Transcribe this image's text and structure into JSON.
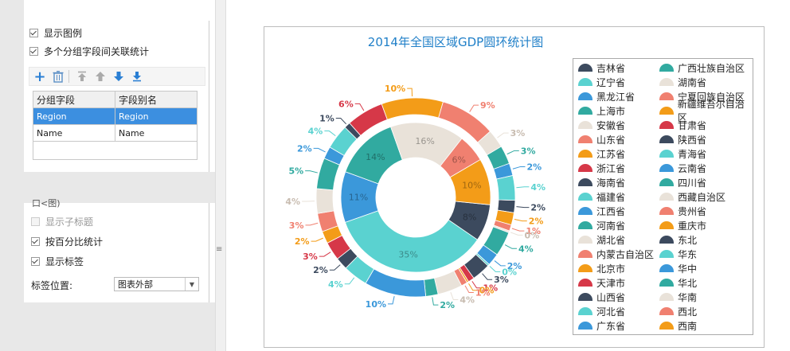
{
  "panel": {
    "show_legend": "显示图例",
    "multi_group": "多个分组字段间关联统计",
    "table_headers": [
      "分组字段",
      "字段别名"
    ],
    "rows": [
      [
        "Region",
        "Region"
      ],
      [
        "Name",
        "Name"
      ]
    ],
    "show_subtitle": "显示子标题",
    "by_percent": "按百分比统计",
    "show_label": "显示标签",
    "label_pos_label": "标签位置:",
    "label_pos_value": "图表外部",
    "partial_label": "口<图)"
  },
  "colors": {
    "accent": "#3c8fe0",
    "title": "#1f7fc8"
  },
  "chart_data": {
    "type": "pie",
    "title": "2014年全国区域GDP圆环统计图",
    "palette": [
      "#3c4a5e",
      "#5ad2d0",
      "#3b98da",
      "#31aaa0",
      "#e9e2d9",
      "#f08070",
      "#f39c18",
      "#d63848"
    ],
    "inner": {
      "categories": [
        "东北",
        "华东",
        "华中",
        "华北",
        "华南",
        "西北",
        "西南"
      ],
      "values": [
        8,
        35,
        11,
        14,
        16,
        6,
        10
      ],
      "colors": [
        "#3c4a5e",
        "#5ad2d0",
        "#3b98da",
        "#31aaa0",
        "#e9e2d9",
        "#f08070",
        "#f39c18"
      ],
      "labels": [
        "8%",
        "35%",
        "11%",
        "14%",
        "16%",
        "6%",
        "10%"
      ]
    },
    "outer": {
      "labels": [
        "2%",
        "2%",
        "1%",
        "0%",
        "4%",
        "2%",
        "0%",
        "3%",
        "1%",
        "0%",
        "1%",
        "4%",
        "2%",
        "10%",
        "4%",
        "2%",
        "3%",
        "2%",
        "3%",
        "4%",
        "5%",
        "2%",
        "4%",
        "1%",
        "6%",
        "10%",
        "9%",
        "3%",
        "3%",
        "2%",
        "4%"
      ],
      "values": [
        2,
        2,
        1,
        0.3,
        4,
        2,
        0.3,
        3,
        1,
        0.3,
        1,
        4,
        2,
        10,
        4,
        2,
        3,
        2,
        3,
        4,
        5,
        2,
        4,
        1,
        6,
        10,
        9,
        3,
        3,
        2,
        4
      ],
      "colors": [
        "#3c4a5e",
        "#f39c18",
        "#f08070",
        "#e9e2d9",
        "#31aaa0",
        "#3b98da",
        "#5ad2d0",
        "#3c4a5e",
        "#d63848",
        "#f39c18",
        "#f08070",
        "#e9e2d9",
        "#31aaa0",
        "#3b98da",
        "#5ad2d0",
        "#3c4a5e",
        "#d63848",
        "#f39c18",
        "#f08070",
        "#e9e2d9",
        "#31aaa0",
        "#3b98da",
        "#5ad2d0",
        "#3c4a5e",
        "#d63848",
        "#f39c18",
        "#f08070",
        "#e9e2d9",
        "#31aaa0",
        "#3b98da",
        "#5ad2d0"
      ]
    },
    "legend": [
      {
        "name": "吉林省",
        "color": "#3c4a5e"
      },
      {
        "name": "辽宁省",
        "color": "#5ad2d0"
      },
      {
        "name": "黑龙江省",
        "color": "#3b98da"
      },
      {
        "name": "上海市",
        "color": "#31aaa0"
      },
      {
        "name": "安徽省",
        "color": "#e9e2d9"
      },
      {
        "name": "山东省",
        "color": "#f08070"
      },
      {
        "name": "江苏省",
        "color": "#f39c18"
      },
      {
        "name": "浙江省",
        "color": "#d63848"
      },
      {
        "name": "海南省",
        "color": "#3c4a5e"
      },
      {
        "name": "福建省",
        "color": "#5ad2d0"
      },
      {
        "name": "江西省",
        "color": "#3b98da"
      },
      {
        "name": "河南省",
        "color": "#31aaa0"
      },
      {
        "name": "湖北省",
        "color": "#e9e2d9"
      },
      {
        "name": "内蒙古自治区",
        "color": "#f08070"
      },
      {
        "name": "北京市",
        "color": "#f39c18"
      },
      {
        "name": "天津市",
        "color": "#d63848"
      },
      {
        "name": "山西省",
        "color": "#3c4a5e"
      },
      {
        "name": "河北省",
        "color": "#5ad2d0"
      },
      {
        "name": "广东省",
        "color": "#3b98da"
      },
      {
        "name": "广西壮族自治区",
        "color": "#31aaa0"
      },
      {
        "name": "湖南省",
        "color": "#e9e2d9"
      },
      {
        "name": "宁夏回族自治区",
        "color": "#f08070"
      },
      {
        "name": "新疆维吾尔自治区",
        "color": "#f39c18"
      },
      {
        "name": "甘肃省",
        "color": "#d63848"
      },
      {
        "name": "陕西省",
        "color": "#3c4a5e"
      },
      {
        "name": "青海省",
        "color": "#5ad2d0"
      },
      {
        "name": "云南省",
        "color": "#3b98da"
      },
      {
        "name": "四川省",
        "color": "#31aaa0"
      },
      {
        "name": "西藏自治区",
        "color": "#e9e2d9"
      },
      {
        "name": "贵州省",
        "color": "#f08070"
      },
      {
        "name": "重庆市",
        "color": "#f39c18"
      },
      {
        "name": "东北",
        "color": "#3c4a5e"
      },
      {
        "name": "华东",
        "color": "#5ad2d0"
      },
      {
        "name": "华中",
        "color": "#3b98da"
      },
      {
        "name": "华北",
        "color": "#31aaa0"
      },
      {
        "name": "华南",
        "color": "#e9e2d9"
      },
      {
        "name": "西北",
        "color": "#f08070"
      },
      {
        "name": "西南",
        "color": "#f39c18"
      }
    ]
  }
}
